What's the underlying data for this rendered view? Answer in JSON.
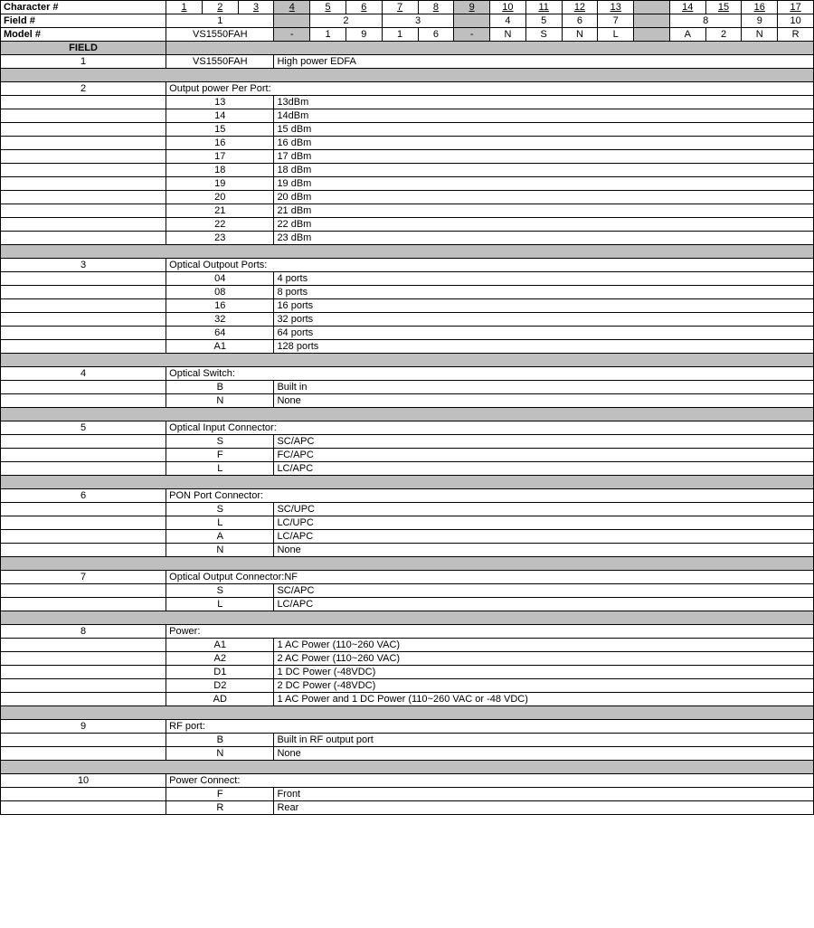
{
  "header": {
    "characterLabel": "Character #",
    "fieldLabel": "Field #",
    "modelLabel": "Model #",
    "characterNums": [
      "1",
      "2",
      "3",
      "4",
      "5",
      "6",
      "7",
      "8",
      "9",
      "10",
      "11",
      "12",
      "13",
      "",
      "14",
      "15",
      "16",
      "17"
    ],
    "fieldNums": [
      "1",
      "",
      "2",
      "",
      "3",
      "",
      "4",
      "5",
      "6",
      "7",
      "",
      "8",
      "",
      "9",
      "10"
    ],
    "fieldSpans": [
      3,
      1,
      2,
      2,
      1,
      1,
      1,
      1,
      1,
      1,
      1,
      2,
      1,
      1
    ],
    "modelRow": [
      "VS1550FAH",
      "-",
      "1",
      "9",
      "1",
      "6",
      "-",
      "N",
      "S",
      "N",
      "L",
      "",
      "A",
      "2",
      "N",
      "R"
    ],
    "grayCols": [
      3,
      8,
      13
    ]
  },
  "fieldLabelText": "FIELD",
  "sections": [
    {
      "fieldNum": "1",
      "title": "VS1550FAH",
      "titleCol": "col1",
      "desc": "High power EDFA",
      "rows": []
    },
    {
      "fieldNum": "2",
      "title": "Output power Per Port:",
      "rows": [
        {
          "code": "13",
          "desc": "13dBm"
        },
        {
          "code": "14",
          "desc": "14dBm"
        },
        {
          "code": "15",
          "desc": "15 dBm"
        },
        {
          "code": "16",
          "desc": "16 dBm"
        },
        {
          "code": "17",
          "desc": "17 dBm"
        },
        {
          "code": "18",
          "desc": "18 dBm"
        },
        {
          "code": "19",
          "desc": "19 dBm"
        },
        {
          "code": "20",
          "desc": "20 dBm"
        },
        {
          "code": "21",
          "desc": "21 dBm"
        },
        {
          "code": "22",
          "desc": "22 dBm"
        },
        {
          "code": "23",
          "desc": "23 dBm"
        }
      ]
    },
    {
      "fieldNum": "3",
      "title": "Optical Outpout Ports:",
      "rows": [
        {
          "code": "04",
          "desc": "4 ports"
        },
        {
          "code": "08",
          "desc": "8 ports"
        },
        {
          "code": "16",
          "desc": "16 ports"
        },
        {
          "code": "32",
          "desc": "32 ports"
        },
        {
          "code": "64",
          "desc": "64 ports"
        },
        {
          "code": "A1",
          "desc": "128 ports"
        }
      ]
    },
    {
      "fieldNum": "4",
      "title": "Optical Switch:",
      "rows": [
        {
          "code": "B",
          "desc": "Built in"
        },
        {
          "code": "N",
          "desc": "None"
        }
      ]
    },
    {
      "fieldNum": "5",
      "title": "Optical Input Connector:",
      "rows": [
        {
          "code": "S",
          "desc": "SC/APC"
        },
        {
          "code": "F",
          "desc": "FC/APC"
        },
        {
          "code": "L",
          "desc": "LC/APC"
        }
      ]
    },
    {
      "fieldNum": "6",
      "title": "PON Port Connector:",
      "rows": [
        {
          "code": "S",
          "desc": "SC/UPC"
        },
        {
          "code": "L",
          "desc": "LC/UPC"
        },
        {
          "code": "A",
          "desc": "LC/APC"
        },
        {
          "code": "N",
          "desc": "None"
        }
      ]
    },
    {
      "fieldNum": "7",
      "title": "Optical Output Connector:NF",
      "rows": [
        {
          "code": "S",
          "desc": "SC/APC"
        },
        {
          "code": "L",
          "desc": "LC/APC"
        }
      ]
    },
    {
      "fieldNum": "8",
      "title": "Power:",
      "rows": [
        {
          "code": "A1",
          "desc": "1 AC Power (110~260 VAC)"
        },
        {
          "code": "A2",
          "desc": "2 AC Power (110~260 VAC)"
        },
        {
          "code": "D1",
          "desc": "1 DC Power (-48VDC)"
        },
        {
          "code": "D2",
          "desc": "2 DC Power (-48VDC)"
        },
        {
          "code": "AD",
          "desc": "1 AC Power and  1 DC Power (110~260 VAC or -48 VDC)"
        }
      ]
    },
    {
      "fieldNum": "9",
      "title": "RF port:",
      "rows": [
        {
          "code": "B",
          "desc": "Built in RF output port"
        },
        {
          "code": "N",
          "desc": "None"
        }
      ]
    },
    {
      "fieldNum": "10",
      "title": "Power Connect:",
      "rows": [
        {
          "code": "F",
          "desc": "Front"
        },
        {
          "code": "R",
          "desc": "Rear"
        }
      ],
      "noTrailingGray": true
    }
  ],
  "style": {
    "grayColor": "#bfbfbf",
    "borderColor": "#000000",
    "fontSize": 11
  }
}
